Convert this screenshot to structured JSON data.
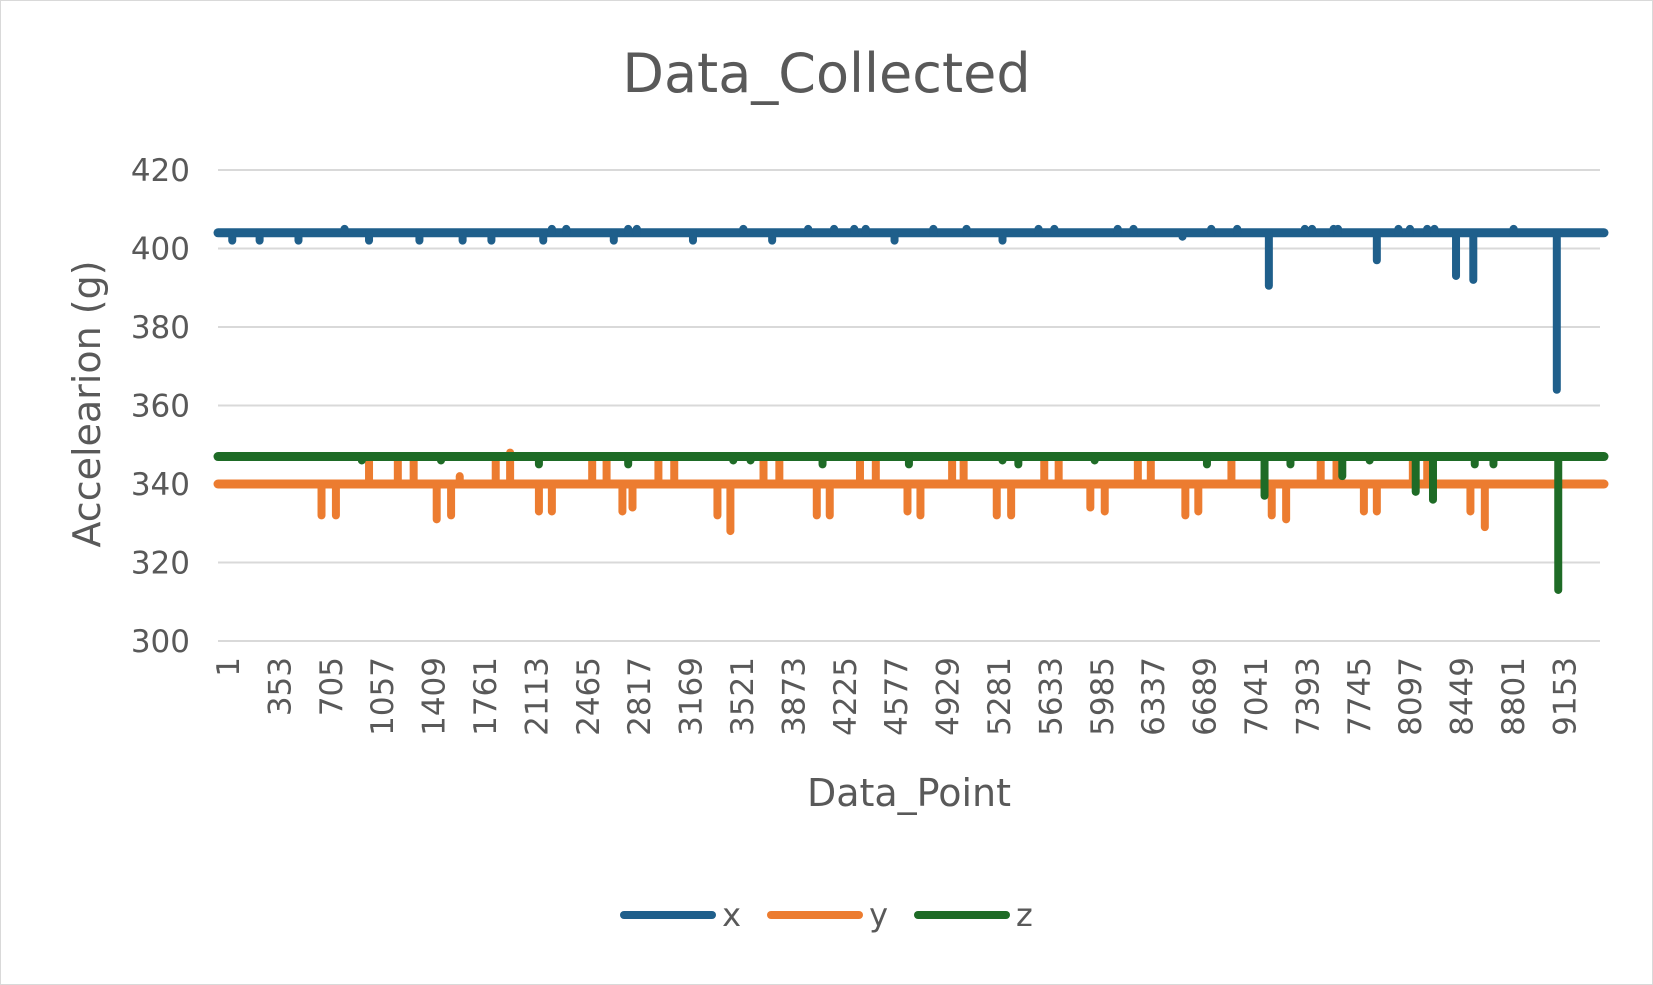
{
  "chart_data": {
    "type": "line",
    "title": "Data_Collected",
    "xlabel": "Data_Point",
    "ylabel": "Accelearion (g)",
    "ylim": [
      300,
      420
    ],
    "yticks": [
      "300",
      "320",
      "340",
      "360",
      "380",
      "400",
      "420"
    ],
    "xlim": [
      1,
      9600
    ],
    "xticks": [
      "1",
      "353",
      "705",
      "1057",
      "1409",
      "1761",
      "2113",
      "2465",
      "2817",
      "3169",
      "3521",
      "3873",
      "4225",
      "4577",
      "4929",
      "5281",
      "5633",
      "5985",
      "6337",
      "6689",
      "7041",
      "7393",
      "7745",
      "8097",
      "8449",
      "8801",
      "9153"
    ],
    "grid": true,
    "legend_position": "bottom",
    "series": [
      {
        "name": "x",
        "color": "#1f5f8b",
        "baseline": 404,
        "spikes": [
          [
            100,
            402
          ],
          [
            290,
            402
          ],
          [
            560,
            402
          ],
          [
            880,
            405
          ],
          [
            1050,
            402
          ],
          [
            1400,
            402
          ],
          [
            1700,
            402
          ],
          [
            1900,
            402
          ],
          [
            2260,
            402
          ],
          [
            2320,
            405
          ],
          [
            2420,
            405
          ],
          [
            2750,
            402
          ],
          [
            2850,
            405
          ],
          [
            2910,
            405
          ],
          [
            3300,
            402
          ],
          [
            3650,
            405
          ],
          [
            3850,
            402
          ],
          [
            4100,
            405
          ],
          [
            4280,
            405
          ],
          [
            4420,
            405
          ],
          [
            4500,
            405
          ],
          [
            4700,
            402
          ],
          [
            4970,
            405
          ],
          [
            5200,
            405
          ],
          [
            5450,
            402
          ],
          [
            5700,
            405
          ],
          [
            5810,
            405
          ],
          [
            6250,
            405
          ],
          [
            6360,
            405
          ],
          [
            6700,
            403
          ],
          [
            6900,
            405
          ],
          [
            7080,
            405
          ],
          [
            7300,
            390.5
          ],
          [
            7550,
            405
          ],
          [
            7600,
            405
          ],
          [
            7750,
            405
          ],
          [
            7780,
            405
          ],
          [
            8050,
            397
          ],
          [
            8200,
            405
          ],
          [
            8280,
            405
          ],
          [
            8400,
            405
          ],
          [
            8450,
            405
          ],
          [
            8600,
            393
          ],
          [
            8720,
            392
          ],
          [
            9000,
            405
          ],
          [
            9300,
            364
          ]
        ]
      },
      {
        "name": "y",
        "color": "#ec7c30",
        "baseline": 340,
        "spikes": [
          [
            1050,
            347
          ],
          [
            720,
            332
          ],
          [
            820,
            332
          ],
          [
            1250,
            347
          ],
          [
            1360,
            347
          ],
          [
            1520,
            331
          ],
          [
            1620,
            332
          ],
          [
            1680,
            342
          ],
          [
            1930,
            347
          ],
          [
            2030,
            348
          ],
          [
            2230,
            333
          ],
          [
            2320,
            333
          ],
          [
            2600,
            347
          ],
          [
            2700,
            347
          ],
          [
            2810,
            333
          ],
          [
            2880,
            334
          ],
          [
            3060,
            347
          ],
          [
            3170,
            347
          ],
          [
            3470,
            332
          ],
          [
            3560,
            328
          ],
          [
            3790,
            347
          ],
          [
            3900,
            347
          ],
          [
            4160,
            332
          ],
          [
            4250,
            332
          ],
          [
            4460,
            347
          ],
          [
            4570,
            347
          ],
          [
            4790,
            333
          ],
          [
            4880,
            332
          ],
          [
            5100,
            347
          ],
          [
            5180,
            347
          ],
          [
            5410,
            332
          ],
          [
            5510,
            332
          ],
          [
            5740,
            347
          ],
          [
            5840,
            347
          ],
          [
            6060,
            334
          ],
          [
            6160,
            333
          ],
          [
            6390,
            347
          ],
          [
            6480,
            347
          ],
          [
            6720,
            332
          ],
          [
            6810,
            333
          ],
          [
            7040,
            347
          ],
          [
            7320,
            332
          ],
          [
            7420,
            331
          ],
          [
            7660,
            347
          ],
          [
            7770,
            347
          ],
          [
            7960,
            333
          ],
          [
            8050,
            333
          ],
          [
            8300,
            347
          ],
          [
            8400,
            347
          ],
          [
            8700,
            333
          ],
          [
            8800,
            329
          ]
        ]
      },
      {
        "name": "z",
        "color": "#1e6b26",
        "baseline": 347,
        "spikes": [
          [
            1000,
            346
          ],
          [
            1550,
            346
          ],
          [
            2230,
            345
          ],
          [
            2850,
            345
          ],
          [
            3580,
            346
          ],
          [
            3700,
            346
          ],
          [
            4200,
            345
          ],
          [
            4800,
            345
          ],
          [
            5450,
            346
          ],
          [
            5560,
            345
          ],
          [
            6090,
            346
          ],
          [
            6870,
            345
          ],
          [
            7270,
            337
          ],
          [
            7450,
            345
          ],
          [
            7810,
            342
          ],
          [
            8000,
            346
          ],
          [
            8320,
            338
          ],
          [
            8440,
            336
          ],
          [
            8730,
            345
          ],
          [
            8860,
            345
          ],
          [
            9310,
            313
          ]
        ]
      }
    ]
  }
}
